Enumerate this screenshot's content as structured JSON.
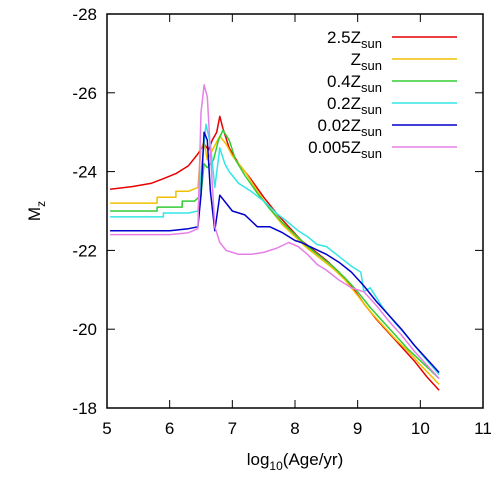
{
  "chart_data": {
    "type": "line",
    "xlabel": "log",
    "xlabel_sub": "10",
    "xlabel_rest": "(Age/yr)",
    "ylabel": "M",
    "ylabel_sub": "z",
    "xlim": [
      5,
      11
    ],
    "ylim": [
      -18,
      -28
    ],
    "y_inverted": true,
    "xticks": [
      5,
      6,
      7,
      8,
      9,
      10,
      11
    ],
    "yticks": [
      -28,
      -26,
      -24,
      -22,
      -20,
      -18
    ],
    "legend_position": "top-right",
    "grid": false,
    "series": [
      {
        "name": "2.5Zsun",
        "legend_main": "2.5Z",
        "legend_sub": "sun",
        "color": "#e60000",
        "points": [
          [
            5.05,
            -23.55
          ],
          [
            5.4,
            -23.62
          ],
          [
            5.7,
            -23.7
          ],
          [
            5.9,
            -23.82
          ],
          [
            6.1,
            -23.95
          ],
          [
            6.3,
            -24.15
          ],
          [
            6.45,
            -24.45
          ],
          [
            6.55,
            -24.7
          ],
          [
            6.62,
            -24.55
          ],
          [
            6.68,
            -24.8
          ],
          [
            6.75,
            -25.0
          ],
          [
            6.8,
            -25.4
          ],
          [
            6.85,
            -25.1
          ],
          [
            6.95,
            -24.6
          ],
          [
            7.1,
            -24.2
          ],
          [
            7.3,
            -23.8
          ],
          [
            7.5,
            -23.35
          ],
          [
            7.7,
            -22.95
          ],
          [
            7.9,
            -22.6
          ],
          [
            8.1,
            -22.25
          ],
          [
            8.3,
            -22.0
          ],
          [
            8.5,
            -21.75
          ],
          [
            8.7,
            -21.45
          ],
          [
            8.9,
            -21.1
          ],
          [
            9.1,
            -20.65
          ],
          [
            9.3,
            -20.25
          ],
          [
            9.5,
            -19.9
          ],
          [
            9.7,
            -19.55
          ],
          [
            9.9,
            -19.2
          ],
          [
            10.1,
            -18.8
          ],
          [
            10.3,
            -18.45
          ]
        ]
      },
      {
        "name": "Zsun",
        "legend_main": "Z",
        "legend_sub": "sun",
        "color": "#f0c000",
        "points": [
          [
            5.05,
            -23.2
          ],
          [
            5.8,
            -23.2
          ],
          [
            5.8,
            -23.35
          ],
          [
            6.1,
            -23.35
          ],
          [
            6.1,
            -23.5
          ],
          [
            6.3,
            -23.5
          ],
          [
            6.45,
            -23.6
          ],
          [
            6.5,
            -24.6
          ],
          [
            6.55,
            -24.75
          ],
          [
            6.6,
            -24.3
          ],
          [
            6.7,
            -24.6
          ],
          [
            6.8,
            -24.9
          ],
          [
            6.9,
            -24.7
          ],
          [
            7.0,
            -24.4
          ],
          [
            7.2,
            -24.0
          ],
          [
            7.4,
            -23.5
          ],
          [
            7.6,
            -23.05
          ],
          [
            7.8,
            -22.65
          ],
          [
            8.0,
            -22.35
          ],
          [
            8.2,
            -22.05
          ],
          [
            8.4,
            -21.8
          ],
          [
            8.6,
            -21.55
          ],
          [
            8.8,
            -21.25
          ],
          [
            9.0,
            -20.85
          ],
          [
            9.2,
            -20.45
          ],
          [
            9.4,
            -20.1
          ],
          [
            9.6,
            -19.75
          ],
          [
            9.8,
            -19.45
          ],
          [
            10.0,
            -19.1
          ],
          [
            10.3,
            -18.6
          ]
        ]
      },
      {
        "name": "0.4Zsun",
        "legend_main": "0.4Z",
        "legend_sub": "sun",
        "color": "#33cc33",
        "points": [
          [
            5.05,
            -23.0
          ],
          [
            5.8,
            -23.0
          ],
          [
            5.8,
            -23.1
          ],
          [
            6.2,
            -23.1
          ],
          [
            6.2,
            -23.25
          ],
          [
            6.4,
            -23.25
          ],
          [
            6.5,
            -23.4
          ],
          [
            6.55,
            -24.2
          ],
          [
            6.6,
            -24.1
          ],
          [
            6.7,
            -24.3
          ],
          [
            6.78,
            -24.8
          ],
          [
            6.85,
            -25.05
          ],
          [
            6.95,
            -24.8
          ],
          [
            7.05,
            -24.3
          ],
          [
            7.2,
            -23.9
          ],
          [
            7.4,
            -23.45
          ],
          [
            7.6,
            -23.05
          ],
          [
            7.8,
            -22.7
          ],
          [
            8.0,
            -22.4
          ],
          [
            8.2,
            -22.1
          ],
          [
            8.4,
            -21.85
          ],
          [
            8.6,
            -21.6
          ],
          [
            8.8,
            -21.3
          ],
          [
            9.0,
            -20.95
          ],
          [
            9.2,
            -20.55
          ],
          [
            9.4,
            -20.2
          ],
          [
            9.6,
            -19.85
          ],
          [
            9.8,
            -19.5
          ],
          [
            10.0,
            -19.2
          ],
          [
            10.3,
            -18.75
          ]
        ]
      },
      {
        "name": "0.2Zsun",
        "legend_main": "0.2Z",
        "legend_sub": "sun",
        "color": "#33e6e6",
        "points": [
          [
            5.05,
            -22.85
          ],
          [
            5.9,
            -22.85
          ],
          [
            5.9,
            -22.95
          ],
          [
            6.3,
            -22.95
          ],
          [
            6.45,
            -23.0
          ],
          [
            6.52,
            -24.3
          ],
          [
            6.58,
            -25.2
          ],
          [
            6.65,
            -24.7
          ],
          [
            6.72,
            -23.6
          ],
          [
            6.8,
            -24.6
          ],
          [
            6.88,
            -24.2
          ],
          [
            6.95,
            -24.0
          ],
          [
            7.1,
            -23.7
          ],
          [
            7.3,
            -23.5
          ],
          [
            7.5,
            -23.25
          ],
          [
            7.7,
            -22.95
          ],
          [
            7.9,
            -22.7
          ],
          [
            8.05,
            -22.5
          ],
          [
            8.2,
            -22.35
          ],
          [
            8.35,
            -22.15
          ],
          [
            8.5,
            -22.1
          ],
          [
            8.7,
            -21.85
          ],
          [
            8.9,
            -21.6
          ],
          [
            9.05,
            -21.45
          ],
          [
            9.1,
            -20.95
          ],
          [
            9.2,
            -21.05
          ],
          [
            9.4,
            -20.55
          ],
          [
            9.6,
            -20.15
          ],
          [
            9.8,
            -19.8
          ],
          [
            10.0,
            -19.4
          ],
          [
            10.3,
            -18.85
          ]
        ]
      },
      {
        "name": "0.02Zsun",
        "legend_main": "0.02Z",
        "legend_sub": "sun",
        "color": "#0000cc",
        "points": [
          [
            5.05,
            -22.5
          ],
          [
            6.0,
            -22.5
          ],
          [
            6.3,
            -22.55
          ],
          [
            6.45,
            -22.6
          ],
          [
            6.5,
            -23.4
          ],
          [
            6.55,
            -25.0
          ],
          [
            6.6,
            -24.8
          ],
          [
            6.65,
            -23.5
          ],
          [
            6.72,
            -22.5
          ],
          [
            6.8,
            -23.4
          ],
          [
            6.9,
            -23.2
          ],
          [
            7.0,
            -23.0
          ],
          [
            7.2,
            -22.9
          ],
          [
            7.4,
            -22.6
          ],
          [
            7.6,
            -22.6
          ],
          [
            7.8,
            -22.45
          ],
          [
            8.0,
            -22.25
          ],
          [
            8.1,
            -22.2
          ],
          [
            8.3,
            -22.05
          ],
          [
            8.5,
            -21.9
          ],
          [
            8.7,
            -21.7
          ],
          [
            8.9,
            -21.45
          ],
          [
            9.1,
            -21.1
          ],
          [
            9.3,
            -20.7
          ],
          [
            9.5,
            -20.35
          ],
          [
            9.7,
            -20.0
          ],
          [
            9.9,
            -19.6
          ],
          [
            10.1,
            -19.25
          ],
          [
            10.3,
            -18.9
          ]
        ]
      },
      {
        "name": "0.005Zsun",
        "legend_main": "0.005Z",
        "legend_sub": "sun",
        "color": "#e680e6",
        "points": [
          [
            5.05,
            -22.4
          ],
          [
            6.0,
            -22.4
          ],
          [
            6.3,
            -22.45
          ],
          [
            6.45,
            -22.55
          ],
          [
            6.5,
            -25.5
          ],
          [
            6.55,
            -26.2
          ],
          [
            6.6,
            -25.9
          ],
          [
            6.65,
            -24.5
          ],
          [
            6.72,
            -22.6
          ],
          [
            6.8,
            -22.2
          ],
          [
            6.9,
            -22.0
          ],
          [
            7.1,
            -21.9
          ],
          [
            7.3,
            -21.9
          ],
          [
            7.5,
            -21.95
          ],
          [
            7.7,
            -22.05
          ],
          [
            7.9,
            -22.2
          ],
          [
            8.05,
            -22.1
          ],
          [
            8.2,
            -21.9
          ],
          [
            8.35,
            -21.65
          ],
          [
            8.5,
            -21.5
          ],
          [
            8.7,
            -21.25
          ],
          [
            8.9,
            -21.05
          ],
          [
            9.1,
            -20.95
          ],
          [
            9.3,
            -20.6
          ],
          [
            9.5,
            -20.2
          ],
          [
            9.7,
            -19.85
          ],
          [
            9.9,
            -19.45
          ],
          [
            10.1,
            -19.1
          ],
          [
            10.3,
            -18.75
          ]
        ]
      }
    ]
  }
}
